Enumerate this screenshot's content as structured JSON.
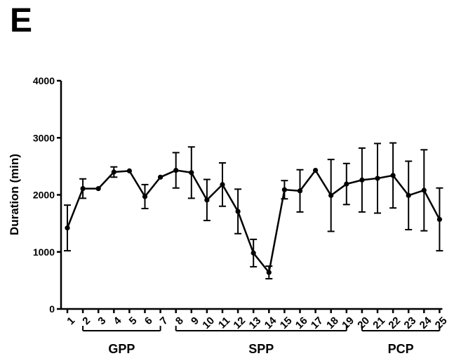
{
  "panel_label": "E",
  "chart_data": {
    "type": "line",
    "title": "",
    "xlabel": "",
    "ylabel": "Duration (min)",
    "ylim": [
      0,
      4000
    ],
    "yticks": [
      "0",
      "1000",
      "2000",
      "3000",
      "4000"
    ],
    "grid": false,
    "legend": "none",
    "x": [
      "1",
      "2",
      "3",
      "4",
      "5",
      "6",
      "7",
      "8",
      "9",
      "10",
      "11",
      "12",
      "13",
      "14",
      "15",
      "16",
      "17",
      "18",
      "19",
      "20",
      "21",
      "22",
      "23",
      "24",
      "25"
    ],
    "series": [
      {
        "name": "",
        "values": [
          1420,
          2110,
          2110,
          2400,
          2420,
          1970,
          2310,
          2430,
          2390,
          1910,
          2180,
          1710,
          980,
          640,
          2090,
          2070,
          2430,
          1990,
          2190,
          2260,
          2290,
          2340,
          1990,
          2080,
          1570
        ],
        "errors": [
          400,
          170,
          0,
          90,
          0,
          210,
          0,
          310,
          450,
          360,
          380,
          390,
          240,
          110,
          160,
          370,
          0,
          630,
          360,
          560,
          610,
          570,
          600,
          710,
          550
        ]
      }
    ],
    "groups": [
      {
        "label": "GPP",
        "from": "2",
        "to": "7"
      },
      {
        "label": "SPP",
        "from": "8",
        "to": "19"
      },
      {
        "label": "PCP",
        "from": "20",
        "to": "25"
      }
    ]
  }
}
